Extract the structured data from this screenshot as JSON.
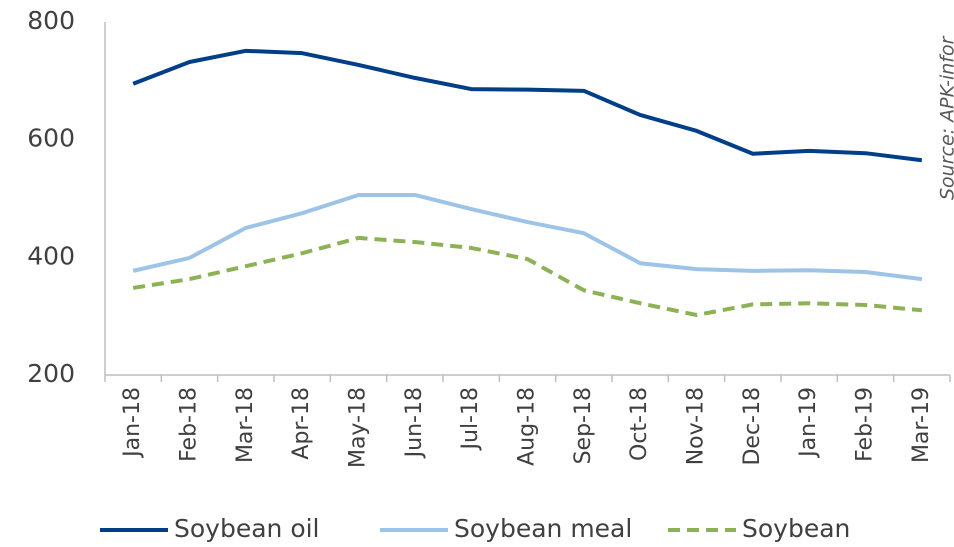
{
  "chart_data": {
    "type": "line",
    "annotation": "Source: APK-infor",
    "categories": [
      "Jan-18",
      "Feb-18",
      "Mar-18",
      "Apr-18",
      "May-18",
      "Jun-18",
      "Jul-18",
      "Aug-18",
      "Sep-18",
      "Oct-18",
      "Nov-18",
      "Dec-18",
      "Jan-19",
      "Feb-19",
      "Mar-19"
    ],
    "series": [
      {
        "name": "Soybean oil",
        "color": "#003f88",
        "dash": false,
        "values": [
          695,
          732,
          751,
          747,
          727,
          705,
          686,
          685,
          683,
          642,
          615,
          576,
          581,
          577,
          565
        ]
      },
      {
        "name": "Soybean meal",
        "color": "#9dc3e6",
        "dash": false,
        "values": [
          377,
          399,
          450,
          475,
          506,
          506,
          482,
          460,
          441,
          390,
          380,
          377,
          378,
          375,
          363
        ]
      },
      {
        "name": "Soybean",
        "color": "#8db255",
        "dash": true,
        "values": [
          348,
          363,
          385,
          407,
          433,
          426,
          416,
          397,
          344,
          322,
          302,
          320,
          322,
          319,
          310
        ]
      }
    ],
    "ylim": [
      200,
      800
    ],
    "yticks": [
      200,
      400,
      600,
      800
    ],
    "grid": false,
    "legend": "bottom"
  }
}
